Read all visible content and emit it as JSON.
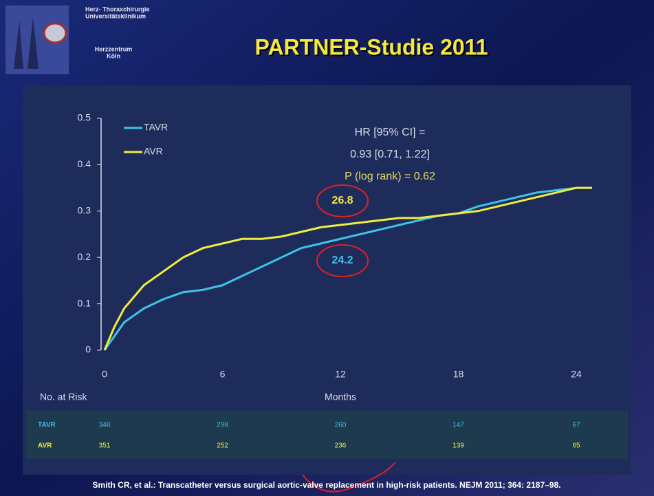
{
  "header": {
    "institution": [
      "Herz- Thoraxchirurgie",
      "Universitätsklinikum"
    ],
    "center": [
      "Herzzentrum",
      "Köln"
    ],
    "title": "PARTNER-Studie 2011"
  },
  "chart_data": {
    "type": "line",
    "xlabel": "Months",
    "x": [
      0,
      0.5,
      1,
      2,
      3,
      4,
      5,
      6,
      7,
      8,
      9,
      10,
      11,
      12,
      13,
      14,
      15,
      16,
      17,
      18,
      19,
      20,
      21,
      22,
      23,
      24,
      24.8
    ],
    "series": [
      {
        "name": "TAVR",
        "color": "#3ec3e8",
        "values": [
          0,
          0.03,
          0.06,
          0.09,
          0.11,
          0.125,
          0.13,
          0.14,
          0.16,
          0.18,
          0.2,
          0.22,
          0.23,
          0.24,
          0.25,
          0.26,
          0.27,
          0.28,
          0.29,
          0.295,
          0.31,
          0.32,
          0.33,
          0.34,
          0.345,
          0.35,
          0.35
        ]
      },
      {
        "name": "AVR",
        "color": "#f2ec3a",
        "values": [
          0,
          0.05,
          0.09,
          0.14,
          0.17,
          0.2,
          0.22,
          0.23,
          0.24,
          0.24,
          0.245,
          0.255,
          0.265,
          0.27,
          0.275,
          0.28,
          0.285,
          0.285,
          0.29,
          0.295,
          0.3,
          0.31,
          0.32,
          0.33,
          0.34,
          0.35,
          0.35
        ]
      }
    ],
    "xlim": [
      0,
      25
    ],
    "xticks": [
      0,
      6,
      12,
      18,
      24
    ],
    "ylim": [
      0,
      0.5
    ],
    "yticks": [
      0,
      0.1,
      0.2,
      0.3,
      0.4,
      0.5
    ],
    "annotations": [
      "HR [95% CI] =",
      "0.93 [0.71, 1.22]",
      "P (log rank) = 0.62"
    ],
    "callouts": [
      "26.8",
      "24.2"
    ]
  },
  "risk_table": {
    "title": "No. at Risk",
    "rows": [
      {
        "name": "TAVR",
        "values": [
          348,
          298,
          260,
          147,
          67
        ]
      },
      {
        "name": "AVR",
        "values": [
          351,
          252,
          236,
          139,
          65
        ]
      }
    ]
  },
  "citation": "Smith CR, et al.: Transcatheter versus surgical aortic-valve replacement in high-risk patients. NEJM 2011; 364: 2187–98."
}
